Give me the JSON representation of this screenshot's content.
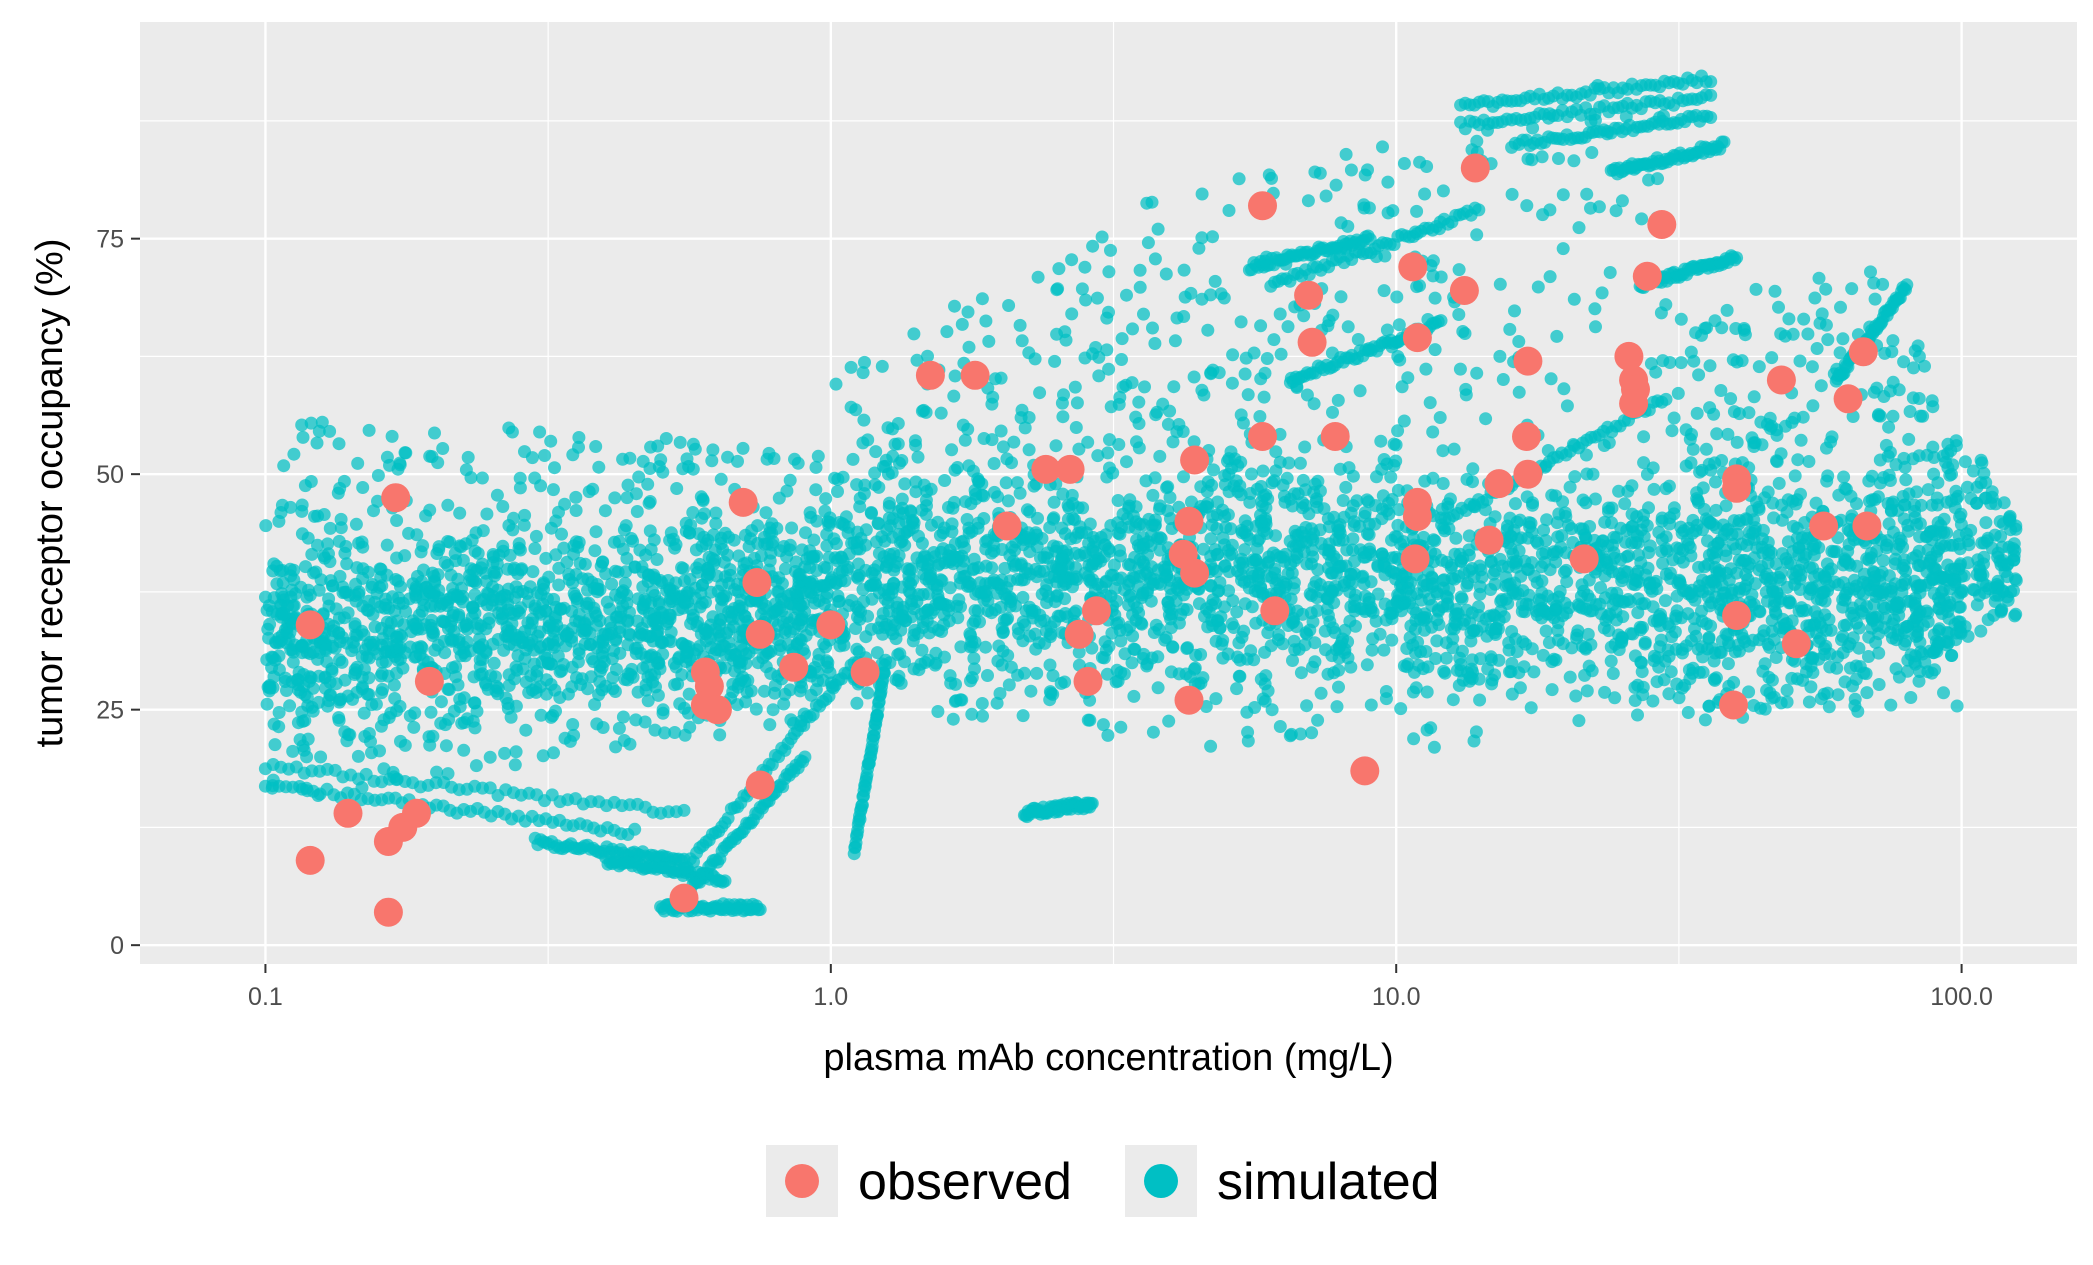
{
  "chart_data": {
    "type": "scatter",
    "title": "",
    "xlabel": "plasma mAb concentration (mg/L)",
    "ylabel": "tumor receptor occupancy (%)",
    "x_scale": "log10",
    "xlim": [
      0.06,
      160
    ],
    "ylim": [
      -2,
      98
    ],
    "x_ticks": [
      0.1,
      1.0,
      10.0,
      100.0
    ],
    "x_tick_labels": [
      "0.1",
      "1.0",
      "10.0",
      "100.0"
    ],
    "y_ticks": [
      0,
      25,
      50,
      75
    ],
    "y_tick_labels": [
      "0",
      "25",
      "50",
      "75"
    ],
    "grid": true,
    "legend_position": "bottom",
    "colors": {
      "panel": "#ebebeb",
      "grid": "#ffffff",
      "observed": "#f8766d",
      "simulated": "#00bfc4"
    },
    "series": [
      {
        "name": "simulated",
        "color": "#00bfc4",
        "bands": [
          {
            "x_from": 0.1,
            "x_to": 0.35,
            "y_low_from": 15,
            "y_low_to": 20,
            "y_high_from": 56,
            "y_high_to": 55
          },
          {
            "x_from": 0.35,
            "x_to": 1.0,
            "y_low_from": 20,
            "y_low_to": 24,
            "y_high_from": 55,
            "y_high_to": 52
          },
          {
            "x_from": 1.0,
            "x_to": 3.0,
            "y_low_from": 24,
            "y_low_to": 23,
            "y_high_from": 62,
            "y_high_to": 75
          },
          {
            "x_from": 3.0,
            "x_to": 8.0,
            "y_low_from": 22,
            "y_low_to": 20,
            "y_high_from": 78,
            "y_high_to": 84
          },
          {
            "x_from": 8.0,
            "x_to": 30.0,
            "y_low_from": 20,
            "y_low_to": 23,
            "y_high_from": 85,
            "y_high_to": 93
          },
          {
            "x_from": 30.0,
            "x_to": 70.0,
            "y_low_from": 25,
            "y_low_to": 26,
            "y_high_from": 68,
            "y_high_to": 72
          },
          {
            "x_from": 70.0,
            "x_to": 125.0,
            "y_low_from": 27,
            "y_low_to": 35,
            "y_high_from": 72,
            "y_high_to": 45
          }
        ],
        "core": [
          {
            "x_from": 0.1,
            "x_to": 1.0,
            "y_from": 32,
            "y_to": 36,
            "spread": 9
          },
          {
            "x_from": 1.0,
            "x_to": 10.0,
            "y_from": 40,
            "y_to": 40,
            "spread": 10
          },
          {
            "x_from": 10.0,
            "x_to": 100.0,
            "y_from": 38,
            "y_to": 38,
            "spread": 10
          }
        ],
        "streaks": [
          {
            "x1": 0.1,
            "y1": 19,
            "x2": 0.55,
            "y2": 14
          },
          {
            "x1": 0.1,
            "y1": 17,
            "x2": 0.45,
            "y2": 12
          },
          {
            "x1": 0.3,
            "y1": 11,
            "x2": 0.55,
            "y2": 9
          },
          {
            "x1": 0.4,
            "y1": 9,
            "x2": 0.65,
            "y2": 7
          },
          {
            "x1": 0.5,
            "y1": 4,
            "x2": 0.75,
            "y2": 4
          },
          {
            "x1": 0.55,
            "y1": 5,
            "x2": 0.9,
            "y2": 20
          },
          {
            "x1": 0.55,
            "y1": 8,
            "x2": 1.1,
            "y2": 30
          },
          {
            "x1": 1.1,
            "y1": 10,
            "x2": 1.25,
            "y2": 30
          },
          {
            "x1": 2.2,
            "y1": 14,
            "x2": 2.9,
            "y2": 15
          },
          {
            "x1": 6.0,
            "y1": 70,
            "x2": 14.0,
            "y2": 78
          },
          {
            "x1": 5.5,
            "y1": 72,
            "x2": 9.0,
            "y2": 75
          },
          {
            "x1": 6.5,
            "y1": 60,
            "x2": 12.0,
            "y2": 66
          },
          {
            "x1": 13.0,
            "y1": 89,
            "x2": 36.0,
            "y2": 92
          },
          {
            "x1": 13.0,
            "y1": 87,
            "x2": 36.0,
            "y2": 90
          },
          {
            "x1": 16.0,
            "y1": 85,
            "x2": 36.0,
            "y2": 88
          },
          {
            "x1": 24.0,
            "y1": 82,
            "x2": 38.0,
            "y2": 85
          },
          {
            "x1": 27.0,
            "y1": 70,
            "x2": 40.0,
            "y2": 73
          },
          {
            "x1": 60.0,
            "y1": 60,
            "x2": 80.0,
            "y2": 70
          },
          {
            "x1": 12.0,
            "y1": 45,
            "x2": 30.0,
            "y2": 58
          }
        ]
      },
      {
        "name": "observed",
        "color": "#f8766d",
        "points": [
          [
            0.12,
            34
          ],
          [
            0.17,
            47.5
          ],
          [
            0.195,
            28
          ],
          [
            0.12,
            9
          ],
          [
            0.14,
            14
          ],
          [
            0.165,
            11
          ],
          [
            0.175,
            12.5
          ],
          [
            0.185,
            14
          ],
          [
            0.165,
            3.5
          ],
          [
            0.6,
            29
          ],
          [
            0.61,
            27.5
          ],
          [
            0.6,
            25.5
          ],
          [
            0.63,
            25
          ],
          [
            0.7,
            47
          ],
          [
            0.74,
            38.5
          ],
          [
            0.75,
            33
          ],
          [
            0.75,
            17
          ],
          [
            0.86,
            29.5
          ],
          [
            1.0,
            34
          ],
          [
            1.15,
            29
          ],
          [
            0.55,
            5
          ],
          [
            1.5,
            60.5
          ],
          [
            1.8,
            60.5
          ],
          [
            2.05,
            44.5
          ],
          [
            2.4,
            50.5
          ],
          [
            2.65,
            50.5
          ],
          [
            2.75,
            33
          ],
          [
            2.85,
            28
          ],
          [
            2.95,
            35.5
          ],
          [
            4.2,
            41.5
          ],
          [
            4.3,
            45
          ],
          [
            4.4,
            51.5
          ],
          [
            4.4,
            39.5
          ],
          [
            4.3,
            26
          ],
          [
            5.8,
            78.5
          ],
          [
            5.8,
            54
          ],
          [
            6.1,
            35.5
          ],
          [
            7.0,
            69
          ],
          [
            7.1,
            64
          ],
          [
            7.8,
            54
          ],
          [
            8.8,
            18.5
          ],
          [
            10.7,
            72
          ],
          [
            10.9,
            64.5
          ],
          [
            10.9,
            47
          ],
          [
            10.9,
            45.5
          ],
          [
            10.8,
            41
          ],
          [
            13.2,
            69.5
          ],
          [
            13.8,
            82.5
          ],
          [
            14.6,
            43
          ],
          [
            15.2,
            49
          ],
          [
            17.1,
            62
          ],
          [
            17.0,
            54
          ],
          [
            17.1,
            50
          ],
          [
            21.5,
            41
          ],
          [
            25.8,
            62.5
          ],
          [
            26.3,
            60
          ],
          [
            26.5,
            59
          ],
          [
            26.3,
            57.5
          ],
          [
            27.8,
            71
          ],
          [
            29.5,
            76.5
          ],
          [
            40,
            49.5
          ],
          [
            40,
            48.5
          ],
          [
            40,
            35
          ],
          [
            39.5,
            25.5
          ],
          [
            48,
            60
          ],
          [
            51,
            32
          ],
          [
            57,
            44.5
          ],
          [
            63,
            58
          ],
          [
            67,
            63
          ],
          [
            68,
            44.5
          ]
        ]
      }
    ]
  }
}
